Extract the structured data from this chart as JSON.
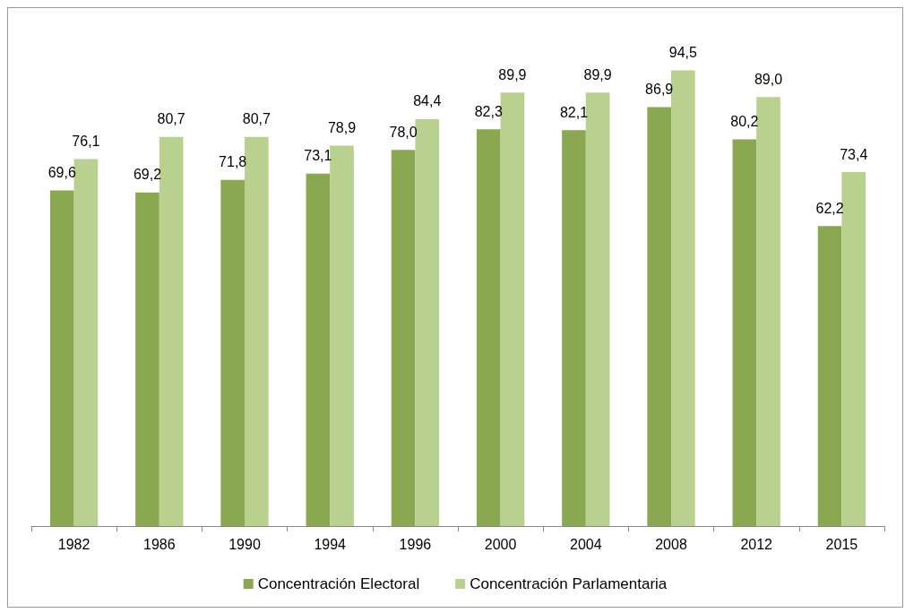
{
  "chart_data": {
    "type": "bar",
    "categories": [
      "1982",
      "1986",
      "1990",
      "1994",
      "1996",
      "2000",
      "2004",
      "2008",
      "2012",
      "2015"
    ],
    "series": [
      {
        "name": "Concentración Electoral",
        "color": "#8aa84f",
        "values": [
          69.6,
          69.2,
          71.8,
          73.1,
          78.0,
          82.3,
          82.1,
          86.9,
          80.2,
          62.2
        ],
        "value_labels": [
          "69,6",
          "69,2",
          "71,8",
          "73,1",
          "78,0",
          "82,3",
          "82,1",
          "86,9",
          "80,2",
          "62,2"
        ]
      },
      {
        "name": "Concentración Parlamentaria",
        "color": "#b9d18e",
        "values": [
          76.1,
          80.7,
          80.7,
          78.9,
          84.4,
          89.9,
          89.9,
          94.5,
          89.0,
          73.4
        ],
        "value_labels": [
          "76,1",
          "80,7",
          "80,7",
          "78,9",
          "84,4",
          "89,9",
          "89,9",
          "94,5",
          "89,0",
          "73,4"
        ]
      }
    ],
    "legend": "bottom",
    "grid": false
  }
}
